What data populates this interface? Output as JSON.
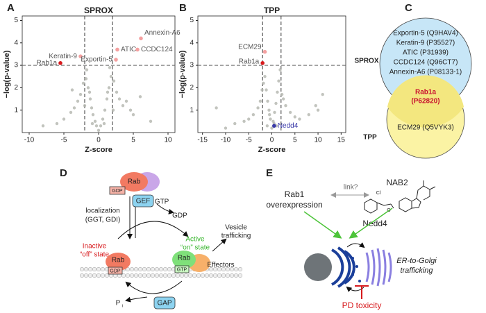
{
  "panel_labels": [
    "A",
    "B",
    "C",
    "D",
    "E"
  ],
  "chart_data": [
    {
      "type": "scatter",
      "title": "SPROX",
      "xlabel": "Z-score",
      "ylabel": "−log(p-value)",
      "xlim": [
        -11,
        11
      ],
      "ylim": [
        0,
        5.2
      ],
      "xticks": [
        -10,
        -5,
        0,
        5,
        10
      ],
      "yticks": [
        1,
        2,
        3,
        4,
        5
      ],
      "thresholds": {
        "x": [
          -2,
          2
        ],
        "y": 3
      },
      "series": [
        {
          "color": "#b3b5ae",
          "x": [
            -1.8,
            -1.5,
            -1.2,
            -1,
            -0.8,
            -0.5,
            -0.3,
            0.3,
            0.6,
            0.9,
            1.2,
            1.5,
            1.8,
            -2.2,
            -2.6,
            -3,
            -3.5,
            -4,
            -5,
            -6,
            2.2,
            2.6,
            3,
            3.5,
            4,
            5,
            6,
            7.5,
            -8,
            -1.7,
            1.6,
            -1.3,
            1.3,
            -2,
            2.1,
            0,
            -0.9,
            0.8,
            -3.8,
            4.6
          ],
          "values": [
            2.4,
            2,
            1.5,
            1.1,
            0.8,
            0.5,
            0.3,
            0.3,
            0.6,
            1,
            1.5,
            2,
            2.5,
            2.2,
            1.7,
            1.4,
            1.1,
            0.9,
            0.6,
            0.4,
            2.3,
            1.8,
            1.5,
            1.2,
            1.4,
            0.8,
            1.6,
            0.5,
            0.3,
            2.8,
            2.9,
            1.8,
            1.8,
            1.2,
            1.0,
            0.1,
            0.4,
            0.4,
            1.9,
            1.0
          ]
        }
      ],
      "points": [
        {
          "label": "Rab1a",
          "x": -5.5,
          "y": 3.1,
          "color": "#d7191c"
        },
        {
          "label": "Keratin-9",
          "x": -2.6,
          "y": 3.4,
          "color": "#f4a0a0"
        },
        {
          "label": "ATIC",
          "x": 2.7,
          "y": 3.7,
          "color": "#f4a0a0"
        },
        {
          "label": "Annexin-A6",
          "x": 6.1,
          "y": 4.2,
          "color": "#f4a0a0"
        },
        {
          "label": "CCDC124",
          "x": 5.6,
          "y": 3.7,
          "color": "#f4a0a0"
        },
        {
          "label": "Exportin-5",
          "x": 2.5,
          "y": 3.25,
          "color": "#f4a0a0"
        }
      ]
    },
    {
      "type": "scatter",
      "title": "TPP",
      "xlabel": "Z-score",
      "ylabel": "−log(p-value)",
      "xlim": [
        -16,
        16
      ],
      "ylim": [
        0,
        5.2
      ],
      "xticks": [
        -15,
        -10,
        -5,
        0,
        5,
        10,
        15
      ],
      "yticks": [
        1,
        2,
        3,
        4,
        5
      ],
      "thresholds": {
        "x": [
          -2,
          2
        ],
        "y": 3
      },
      "series": [
        {
          "color": "#b3b5ae",
          "x": [
            -1.5,
            -1.2,
            -0.9,
            -0.6,
            -0.3,
            0,
            0.3,
            0.6,
            0.9,
            1.2,
            1.5,
            1.8,
            -1.8,
            -2.5,
            -3,
            -4,
            -5,
            -6,
            -8,
            -12,
            2.5,
            3,
            4,
            5,
            6,
            8,
            10,
            11,
            -1,
            1,
            -0.5,
            0.5,
            -2.1,
            2.2,
            -10,
            9.5
          ],
          "values": [
            2.5,
            1.9,
            1.4,
            1,
            0.6,
            0.2,
            0.5,
            0.9,
            1.3,
            1.8,
            2.3,
            2.8,
            2.2,
            1.4,
            1.1,
            0.8,
            0.6,
            0.5,
            0.4,
            1.1,
            1.5,
            1.2,
            0.9,
            0.7,
            0.6,
            0.8,
            1.0,
            1.7,
            0.3,
            0.3,
            0.8,
            0.4,
            1.9,
            1.7,
            0.2,
            1.2
          ]
        }
      ],
      "points": [
        {
          "label": "ECM29",
          "x": -1.5,
          "y": 3.6,
          "color": "#f4a0a0"
        },
        {
          "label": "Rab1a",
          "x": -2,
          "y": 3.1,
          "color": "#d7191c"
        },
        {
          "label": "Nedd4",
          "x": 0.5,
          "y": 0.3,
          "color": "#3a3aa8"
        }
      ]
    }
  ],
  "venn": {
    "labels": [
      "SPROX",
      "TPP"
    ],
    "sprox_only": [
      "Exportin-5 (Q9HAV4)",
      "Keratin-9 (P35527)",
      "ATIC (P31939)",
      "CCDC124 (Q96CT7)",
      "Annexin-A6 (P08133-1)"
    ],
    "overlap": [
      "Rab1a",
      "(P62820)"
    ],
    "tpp_only": [
      "ECM29 (Q5VYK3)"
    ]
  },
  "cycle": {
    "rab": "Rab",
    "gdp": "GDP",
    "gtp": "GTP",
    "localization": [
      "localization",
      "(GGT, GDI)"
    ],
    "gef": "GEF",
    "gap": "GAP",
    "pi": "P",
    "pi_sub": "i",
    "inactive": [
      "Inactive",
      "“off” state"
    ],
    "active": [
      "Active",
      "“on” state"
    ],
    "vesicle": [
      "Vesicle",
      "trafficking"
    ],
    "effectors": "Effectors"
  },
  "model": {
    "rab1": [
      "Rab1",
      "overexpression"
    ],
    "link": "link?",
    "nab2": "NAB2",
    "nedd4": "Nedd4",
    "trafficking": [
      "ER-to-Golgi",
      "trafficking"
    ],
    "toxicity": "PD toxicity"
  }
}
